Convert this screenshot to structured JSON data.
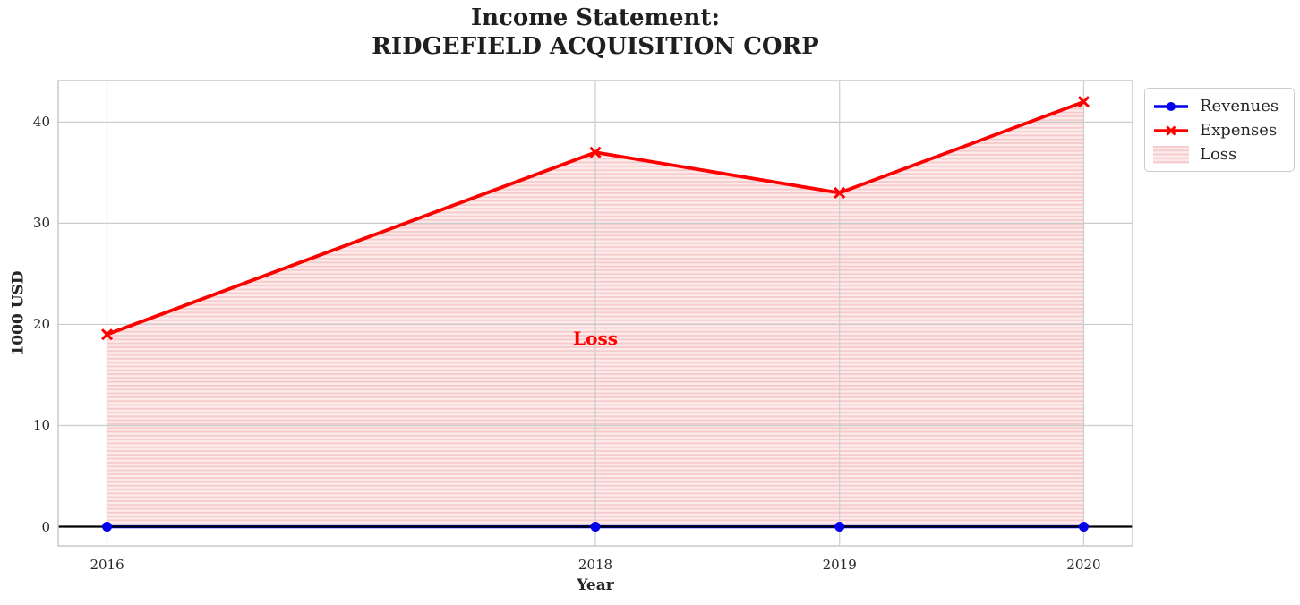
{
  "title": {
    "line1": "Income Statement:",
    "line2": "RIDGEFIELD ACQUISITION CORP"
  },
  "chart_data": {
    "type": "line",
    "x": [
      2016,
      2018,
      2019,
      2020
    ],
    "series": [
      {
        "name": "Revenues",
        "values": [
          0,
          0,
          0,
          0
        ],
        "color": "#0000ee",
        "marker": "circle"
      },
      {
        "name": "Expenses",
        "values": [
          19,
          37,
          33,
          42
        ],
        "color": "#ff0000",
        "marker": "x"
      }
    ],
    "loss_region": {
      "label": "Loss",
      "between": [
        "Expenses",
        "Revenues"
      ],
      "fill_color": "#fdeaea",
      "hatch_color": "#f6caca",
      "hatch": "horizontal-lines"
    },
    "annotation": {
      "text": "Loss",
      "x": 2018,
      "y": 18.6,
      "color": "#ff0000"
    },
    "xlabel": "Year",
    "ylabel": "1000 USD",
    "x_ticks": [
      "2016",
      "2018",
      "2019",
      "2020"
    ],
    "x_tick_values": [
      2016,
      2018,
      2019,
      2020
    ],
    "y_ticks": [
      0,
      10,
      20,
      30,
      40
    ],
    "xlim": [
      2015.8,
      2020.2
    ],
    "ylim": [
      -1.9,
      44.1
    ],
    "grid": true,
    "grid_color": "#cccccc",
    "spine_color": "#c9c9c9",
    "zero_line_color": "#000000",
    "background_color": "#ffffff",
    "text_color": "#262626",
    "legend_position": "top-right-outside"
  }
}
